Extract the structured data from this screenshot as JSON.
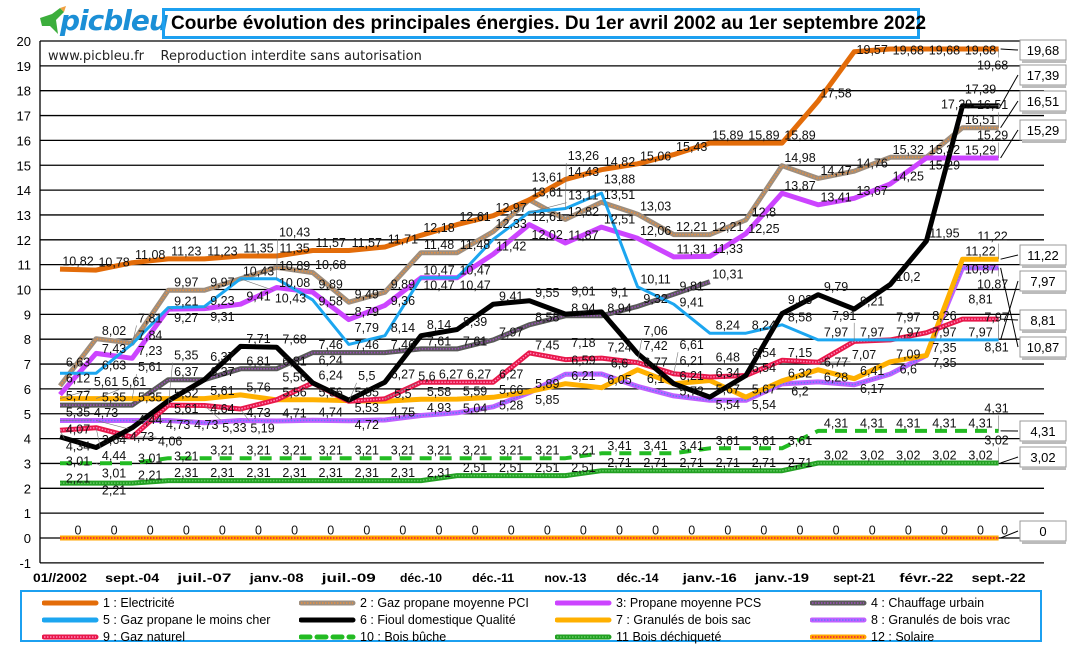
{
  "header": {
    "logo_text": "picbleu",
    "title": "Courbe évolution des principales énergies. Du 1er avril 2002 au 1er septembre 2022",
    "watermark_site": "www.picbleu.fr",
    "watermark_notice": "Reproduction interdite sans autorisation"
  },
  "chart_data": {
    "type": "line",
    "title": "Courbe évolution des principales énergies. Du 1er avril 2002 au 1er septembre 2022",
    "xlabel": "",
    "ylabel": "",
    "ylim": [
      -1,
      20
    ],
    "y_ticks": [
      -1,
      0,
      1,
      2,
      3,
      4,
      5,
      6,
      7,
      8,
      9,
      10,
      11,
      12,
      13,
      14,
      15,
      16,
      17,
      18,
      19,
      20
    ],
    "x_tick_labels": [
      "01//2002",
      "sept.-04",
      "juil.-07",
      "janv.-08",
      "juil.-09",
      "déc.-10",
      "déc.-11",
      "nov.-13",
      "déc.-14",
      "janv.-16",
      "janv.-19",
      "sept-21",
      "févr.-22",
      "sept.-22"
    ],
    "points_per_series": 27,
    "grid": true,
    "legend_position": "bottom",
    "series": [
      {
        "name": "1 : Electricité",
        "color": "#e36c09",
        "style": "solid",
        "values": [
          10.82,
          10.78,
          11.08,
          11.23,
          11.23,
          11.35,
          11.35,
          11.57,
          11.57,
          11.71,
          12.18,
          12.61,
          12.97,
          13.61,
          14.43,
          14.82,
          15.06,
          15.43,
          15.89,
          15.89,
          15.89,
          17.58,
          19.57,
          19.68,
          19.68,
          19.68,
          19.68
        ]
      },
      {
        "name": "2 : Gaz propane moyenne PCI",
        "color": "#9e8e7e",
        "dot_color": "#e89040",
        "style": "dotted-core",
        "values": [
          6.12,
          8.02,
          7.84,
          9.97,
          9.97,
          10.43,
          10.89,
          10.68,
          9.49,
          9.89,
          11.48,
          11.48,
          12.33,
          13.61,
          12.82,
          13.51,
          13.03,
          12.21,
          12.21,
          12.8,
          14.98,
          14.47,
          14.76,
          15.32,
          15.32,
          16.51,
          16.51
        ]
      },
      {
        "name": "3: Propane moyenne PCS",
        "color": "#cc44ff",
        "style": "solid",
        "values": [
          5.77,
          7.43,
          7.23,
          9.21,
          9.23,
          9.41,
          10.08,
          9.89,
          8.79,
          9.36,
          10.47,
          10.47,
          11.42,
          12.61,
          11.87,
          12.51,
          12.06,
          11.31,
          11.33,
          12.25,
          13.87,
          13.41,
          13.67,
          14.25,
          15.29,
          15.29,
          15.29
        ]
      },
      {
        "name": "4 : Chauffage urbain",
        "color": "#595959",
        "dot_color": "#a050c0",
        "style": "dotted-core",
        "values": [
          5.35,
          5.35,
          5.35,
          6.37,
          6.37,
          6.81,
          6.81,
          7.46,
          7.46,
          7.46,
          7.61,
          7.61,
          7.97,
          8.58,
          8.94,
          8.94,
          9.32,
          9.81,
          10.31,
          null,
          null,
          null,
          null,
          null,
          null,
          null,
          null
        ]
      },
      {
        "name": "5 : Gaz propane le moins cher",
        "color": "#1ca6f0",
        "style": "solid",
        "values": [
          6.63,
          6.63,
          7.81,
          9.27,
          9.31,
          10.43,
          10.43,
          9.58,
          7.79,
          8.14,
          10.47,
          10.47,
          12.02,
          13.11,
          13.26,
          13.88,
          10.11,
          9.41,
          8.24,
          8.24,
          8.58,
          7.97,
          7.97,
          7.97,
          7.97,
          7.97,
          7.97
        ]
      },
      {
        "name": "6 : Fioul domestique Qualité",
        "color": "#000000",
        "style": "solid",
        "values": [
          4.07,
          3.64,
          4.44,
          5.52,
          6.37,
          7.71,
          7.68,
          6.24,
          5.55,
          6.27,
          8.14,
          8.39,
          9.41,
          9.55,
          9.01,
          9.1,
          7.42,
          6.21,
          5.67,
          6.54,
          9.03,
          9.79,
          9.21,
          10.2,
          11.95,
          17.39,
          17.39
        ]
      },
      {
        "name": "7 : Granulés de bois sac",
        "color": "#ffb000",
        "style": "solid",
        "values": [
          5.61,
          5.61,
          5.61,
          5.61,
          5.61,
          5.76,
          5.56,
          5.56,
          5.53,
          5.5,
          5.58,
          5.59,
          5.66,
          5.89,
          6.21,
          6.05,
          6.77,
          6.21,
          6.34,
          5.67,
          6.32,
          6.77,
          6.41,
          7.09,
          7.35,
          11.22,
          11.22
        ]
      },
      {
        "name": "8 : Granulés de bois vrac",
        "color": "#c060ff",
        "dot_color": "#5a7cff",
        "style": "dotted-core",
        "values": [
          4.73,
          4.73,
          4.73,
          4.73,
          4.64,
          4.73,
          4.71,
          4.74,
          4.72,
          4.75,
          4.93,
          5.04,
          5.28,
          5.85,
          6.59,
          6.6,
          6.1,
          5.72,
          5.54,
          5.54,
          6.2,
          6.28,
          6.17,
          6.6,
          7.35,
          10.87,
          10.87
        ]
      },
      {
        "name": "9 : Gaz naturel",
        "color": "#e8174a",
        "dot_color": "#ff88bb",
        "style": "dotted-core",
        "values": [
          4.34,
          4.44,
          4.06,
          5.35,
          5.33,
          5.19,
          5.56,
          6.24,
          5.5,
          5.6,
          6.27,
          6.27,
          6.27,
          7.45,
          7.18,
          7.24,
          7.06,
          6.61,
          6.48,
          6.54,
          7.15,
          7.07,
          7.91,
          7.97,
          8.26,
          8.81,
          8.81
        ]
      },
      {
        "name": "10 : Bois bûche",
        "color": "#22bb22",
        "style": "dashed",
        "values": [
          3.01,
          3.01,
          3.01,
          3.21,
          3.21,
          3.21,
          3.21,
          3.21,
          3.21,
          3.21,
          3.21,
          3.21,
          3.21,
          3.21,
          3.21,
          3.41,
          3.41,
          3.41,
          3.61,
          3.61,
          3.61,
          4.31,
          4.31,
          4.31,
          4.31,
          4.31,
          4.31
        ]
      },
      {
        "name": "11 Bois déchiqueté",
        "color": "#22a022",
        "dot_color": "#66cc66",
        "style": "dotted-core",
        "values": [
          2.21,
          2.21,
          2.21,
          2.31,
          2.31,
          2.31,
          2.31,
          2.31,
          2.31,
          2.31,
          2.31,
          2.51,
          2.51,
          2.51,
          2.51,
          2.71,
          2.71,
          2.71,
          2.71,
          2.71,
          2.71,
          3.02,
          3.02,
          3.02,
          3.02,
          3.02,
          3.02
        ]
      },
      {
        "name": "12 : Solaire",
        "color": "#ffa500",
        "dot_color": "#e8174a",
        "style": "dotted-core",
        "values": [
          0,
          0,
          0,
          0,
          0,
          0,
          0,
          0,
          0,
          0,
          0,
          0,
          0,
          0,
          0,
          0,
          0,
          0,
          0,
          0,
          0,
          0,
          0,
          0,
          0,
          0,
          0
        ]
      }
    ]
  }
}
